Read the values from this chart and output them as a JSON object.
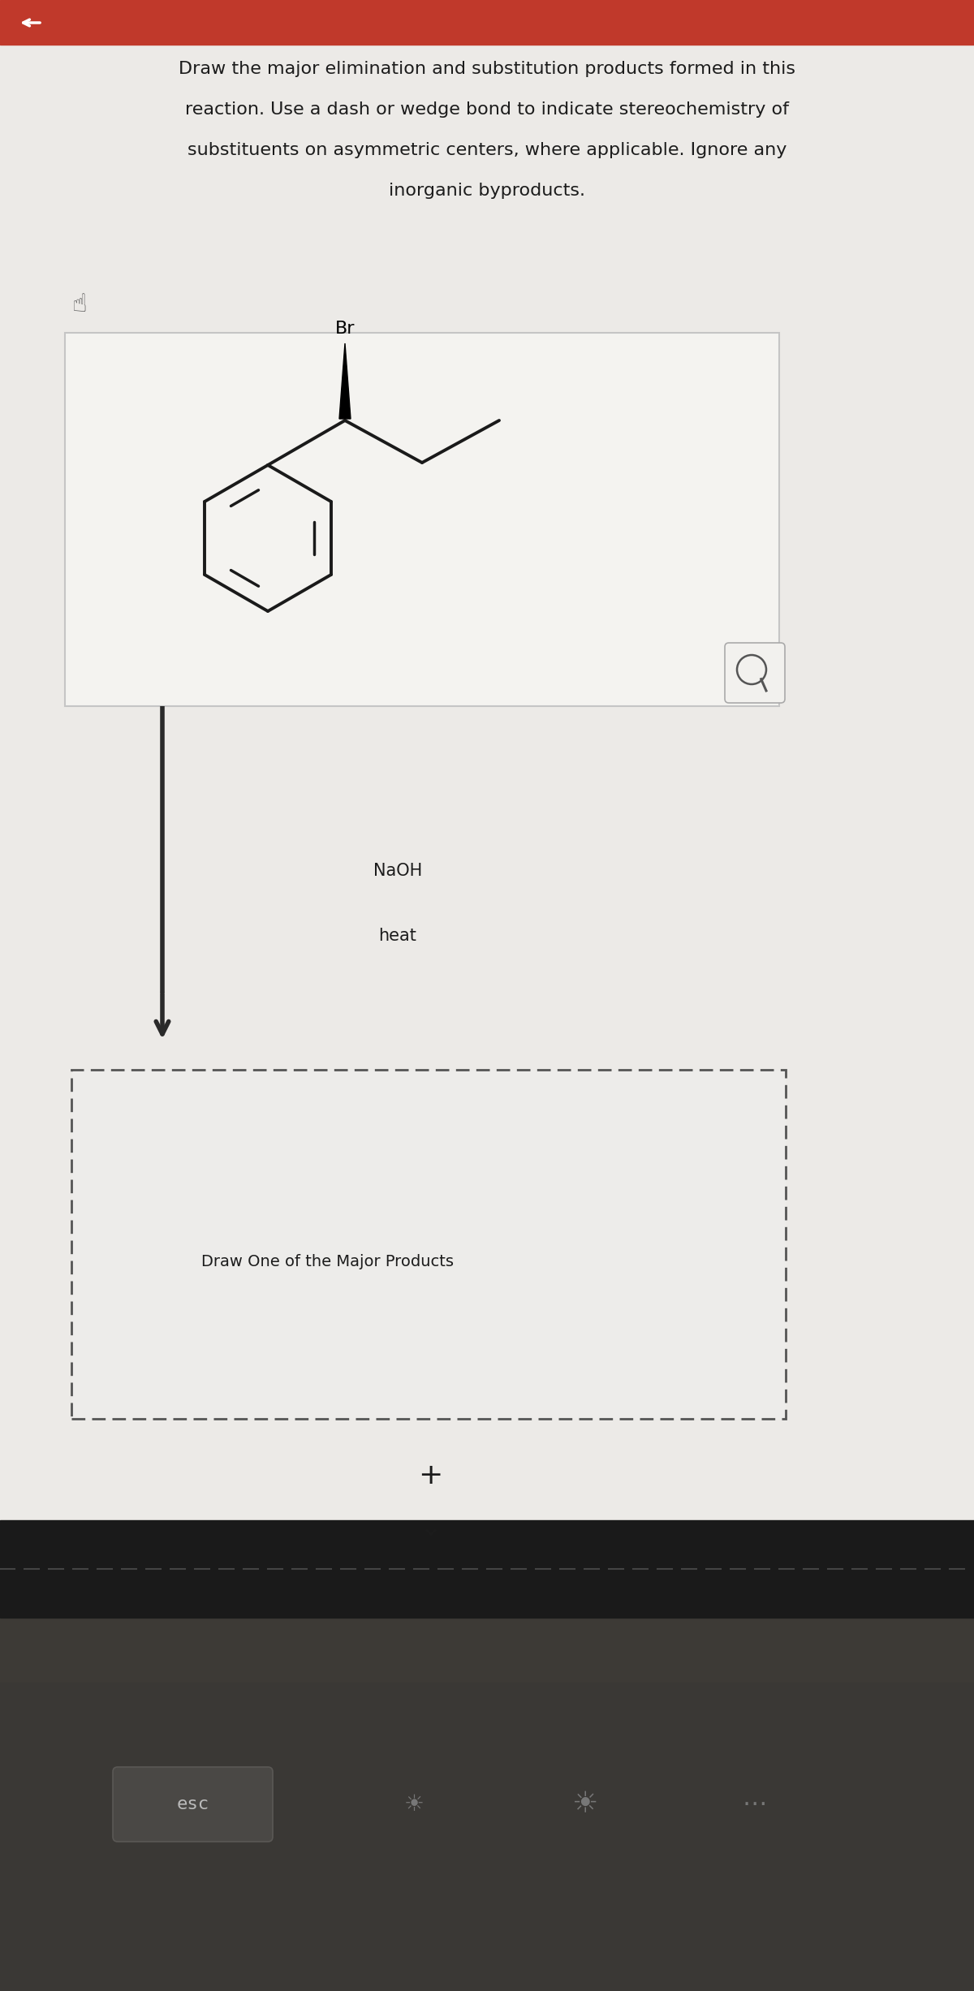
{
  "bg_color": "#e8e7e4",
  "top_bar_color": "#c0392b",
  "content_bg": "#eceae7",
  "box_fill": "#f4f3f0",
  "box_border": "#c5c5c5",
  "dashed_fill": "#edecea",
  "dashed_border": "#555555",
  "bond_color": "#1a1a1a",
  "text_color": "#1c1c1c",
  "arrow_color": "#2a2a2a",
  "bottom_dark": "#111111",
  "keyboard_bg": "#1e1e1e",
  "esc_key_bg": "#333333",
  "esc_text": "#bbbbbb",
  "icon_color": "#777777",
  "mag_box_bg": "#f2f1ee",
  "mag_box_border": "#aaaaaa",
  "instruction_line1": "Draw the major elimination and substitution products formed in this",
  "instruction_line2": "reaction. Use a dash or wedge bond to indicate stereochemistry of",
  "instruction_line3": "substituents on asymmetric centers, where applicable. Ignore any",
  "instruction_line4": "inorganic byproducts.",
  "br_label": "Br",
  "naoh_label": "NaOH",
  "heat_label": "heat",
  "draw_label": "Draw One of the Major Products",
  "plus_label": "+",
  "instr_fontsize": 16,
  "label_fontsize": 15,
  "br_fontsize": 15
}
